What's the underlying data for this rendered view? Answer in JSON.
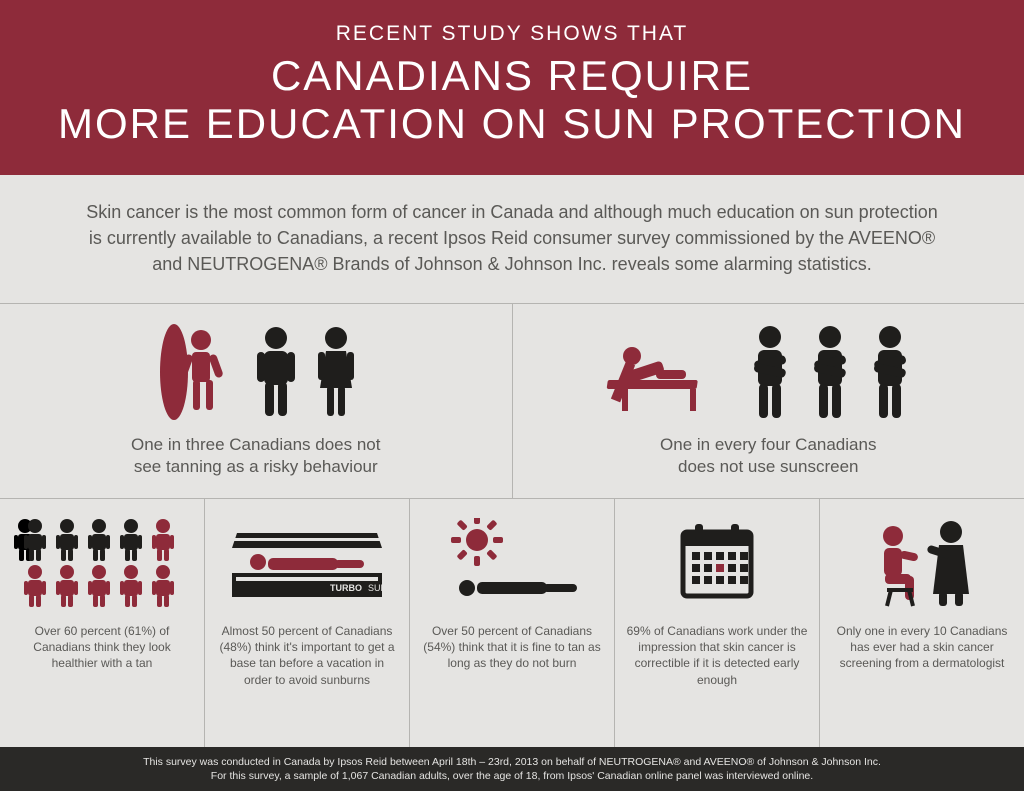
{
  "colors": {
    "brand": "#8e2b3a",
    "dark": "#1f1e1c",
    "text": "#5a5956",
    "bg": "#e5e4e2",
    "footer_bg": "#2a2927"
  },
  "header": {
    "subtitle": "RECENT STUDY SHOWS THAT",
    "title": "CANADIANS REQUIRE\nMORE EDUCATION ON SUN PROTECTION"
  },
  "intro": "Skin cancer is the most common form of cancer in Canada and although much education on sun protection is currently available to Canadians, a recent Ipsos Reid consumer survey commissioned by the AVEENO® and NEUTROGENA® Brands of Johnson & Johnson Inc. reveals some alarming statistics.",
  "stats_big": [
    {
      "text": "One in three Canadians does not\nsee tanning as a risky behaviour",
      "icon": "surfer-3"
    },
    {
      "text": "One in every four Canadians\ndoes not use sunscreen",
      "icon": "lounger-4"
    }
  ],
  "stats_small": [
    {
      "text": "Over 60 percent (61%) of Canadians think they look healthier with a tan",
      "icon": "crowd-10"
    },
    {
      "text": "Almost 50 percent of Canadians (48%) think it's important to get a base tan before a vacation in order to avoid sunburns",
      "icon": "tanning-bed"
    },
    {
      "text": "Over 50 percent of Canadians (54%) think that it is fine to tan as long as they do not burn",
      "icon": "sunbather"
    },
    {
      "text": "69% of Canadians work under the impression that skin cancer is correctible if it is detected early enough",
      "icon": "calendar"
    },
    {
      "text": "Only one in every 10 Canadians has ever had a skin cancer screening from a dermatologist",
      "icon": "doctor"
    }
  ],
  "footer": {
    "line1": "This survey was conducted in Canada by Ipsos Reid between April 18th – 23rd, 2013 on behalf of NEUTROGENA® and AVEENO® of Johnson & Johnson Inc.",
    "line2": "For this survey, a sample of 1,067 Canadian adults, over the age of 18, from Ipsos' Canadian online panel was interviewed online."
  }
}
